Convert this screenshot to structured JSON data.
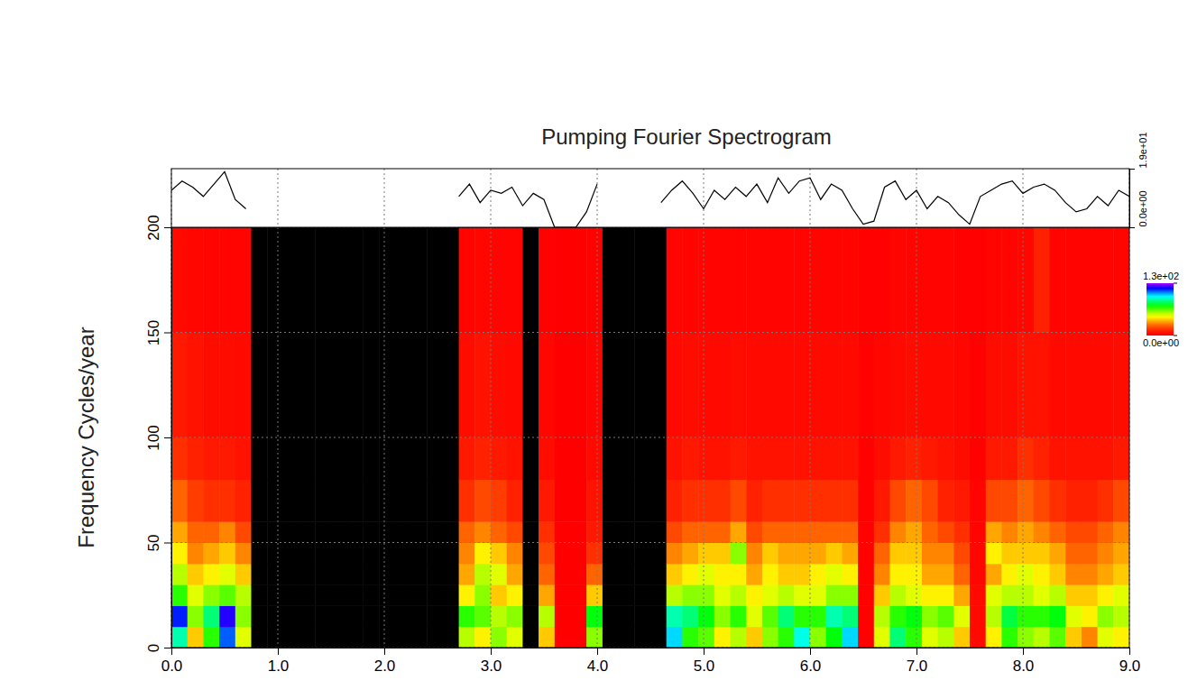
{
  "chart_data": [
    {
      "type": "line",
      "title": "Pumping Fourier Spectrogram",
      "color": "#000000",
      "x": [
        0,
        0.1,
        0.2,
        0.3,
        0.4,
        0.5,
        0.6,
        0.7,
        0.8,
        0.9,
        1,
        1.1,
        1.2,
        1.3,
        1.4,
        1.5,
        1.6,
        1.7,
        1.8,
        1.9,
        2,
        2.1,
        2.2,
        2.3,
        2.4,
        2.5,
        2.6,
        2.7,
        2.8,
        2.9,
        3,
        3.1,
        3.2,
        3.3,
        3.4,
        3.5,
        3.6,
        3.7,
        3.8,
        3.9,
        4,
        4.1,
        4.2,
        4.3,
        4.4,
        4.5,
        4.6,
        4.7,
        4.8,
        4.9,
        5,
        5.1,
        5.2,
        5.3,
        5.4,
        5.5,
        5.6,
        5.7,
        5.8,
        5.9,
        6,
        6.1,
        6.2,
        6.3,
        6.4,
        6.5,
        6.6,
        6.7,
        6.8,
        6.9,
        7,
        7.1,
        7.2,
        7.3,
        7.4,
        7.5,
        7.6,
        7.7,
        7.8,
        7.9,
        8,
        8.1,
        8.2,
        8.3,
        8.4,
        8.5,
        8.6,
        8.7,
        8.8,
        8.9,
        9
      ],
      "values": [
        12,
        15,
        13,
        10,
        14,
        18,
        9,
        6,
        null,
        null,
        null,
        null,
        null,
        null,
        null,
        null,
        null,
        null,
        null,
        null,
        null,
        null,
        null,
        null,
        null,
        null,
        null,
        10,
        14,
        8,
        12,
        11,
        13,
        7,
        11,
        9,
        0,
        0,
        0,
        5,
        14,
        null,
        null,
        null,
        null,
        null,
        8,
        12,
        15,
        11,
        6,
        12,
        9,
        13,
        10,
        14,
        8,
        16,
        11,
        15,
        16,
        9,
        14,
        12,
        6,
        1,
        2,
        13,
        15,
        9,
        12,
        6,
        10,
        8,
        4,
        1,
        10,
        12,
        14,
        15,
        11,
        13,
        14,
        12,
        8,
        5,
        6,
        10,
        7,
        12,
        10
      ],
      "xlim": [
        0,
        9
      ],
      "ylim": [
        0,
        19
      ],
      "xticks": [
        0,
        1,
        2,
        3,
        4,
        5,
        6,
        7,
        8,
        9
      ],
      "yticks": [
        {
          "value": 0,
          "label": "0.0e+00"
        },
        {
          "value": 19,
          "label": "1.9e+01"
        }
      ],
      "grid": true,
      "tick_labels": "y"
    },
    {
      "type": "heatmap",
      "ylabel": "Frequency Cycles/year",
      "x_edges": [
        0,
        0.15,
        0.3,
        0.45,
        0.6,
        0.75,
        0.9,
        1.05,
        1.2,
        1.35,
        1.5,
        1.65,
        1.8,
        1.95,
        2.1,
        2.25,
        2.4,
        2.55,
        2.7,
        2.85,
        3,
        3.15,
        3.3,
        3.45,
        3.6,
        3.75,
        3.9,
        4.05,
        4.2,
        4.35,
        4.5,
        4.65,
        4.8,
        4.95,
        5.1,
        5.25,
        5.4,
        5.55,
        5.7,
        5.85,
        6,
        6.15,
        6.3,
        6.45,
        6.6,
        6.75,
        6.9,
        7.05,
        7.2,
        7.35,
        7.5,
        7.65,
        7.8,
        7.95,
        8.1,
        8.25,
        8.4,
        8.55,
        8.7,
        8.85,
        9
      ],
      "y_edges": [
        0,
        10,
        20,
        30,
        40,
        50,
        60,
        80,
        100,
        150,
        200
      ],
      "cells": [
        [
          90,
          115,
          70,
          55,
          45,
          35,
          25,
          15,
          10,
          5
        ],
        [
          40,
          60,
          50,
          40,
          30,
          25,
          18,
          12,
          8,
          4
        ],
        [
          70,
          85,
          60,
          45,
          35,
          25,
          15,
          10,
          6,
          3
        ],
        [
          110,
          120,
          65,
          50,
          40,
          30,
          15,
          10,
          6,
          3
        ],
        [
          50,
          60,
          55,
          40,
          30,
          20,
          12,
          8,
          5,
          3
        ],
        [
          null,
          null,
          null,
          null,
          null,
          null,
          null,
          null,
          null,
          null
        ],
        [
          null,
          null,
          null,
          null,
          null,
          null,
          null,
          null,
          null,
          null
        ],
        [
          null,
          null,
          null,
          null,
          null,
          null,
          null,
          null,
          null,
          null
        ],
        [
          null,
          null,
          null,
          null,
          null,
          null,
          null,
          null,
          null,
          null
        ],
        [
          null,
          null,
          null,
          null,
          null,
          null,
          null,
          null,
          null,
          null
        ],
        [
          null,
          null,
          null,
          null,
          null,
          null,
          null,
          null,
          null,
          null
        ],
        [
          null,
          null,
          null,
          null,
          null,
          null,
          null,
          null,
          null,
          null
        ],
        [
          null,
          null,
          null,
          null,
          null,
          null,
          null,
          null,
          null,
          null
        ],
        [
          null,
          null,
          null,
          null,
          null,
          null,
          null,
          null,
          null,
          null
        ],
        [
          null,
          null,
          null,
          null,
          null,
          null,
          null,
          null,
          null,
          null
        ],
        [
          null,
          null,
          null,
          null,
          null,
          null,
          null,
          null,
          null,
          null
        ],
        [
          null,
          null,
          null,
          null,
          null,
          null,
          null,
          null,
          null,
          null
        ],
        [
          null,
          null,
          null,
          null,
          null,
          null,
          null,
          null,
          null,
          null
        ],
        [
          55,
          70,
          45,
          35,
          30,
          25,
          15,
          10,
          6,
          3
        ],
        [
          45,
          65,
          60,
          55,
          45,
          30,
          20,
          12,
          8,
          4
        ],
        [
          60,
          55,
          40,
          50,
          40,
          25,
          18,
          10,
          6,
          3
        ],
        [
          50,
          60,
          45,
          35,
          30,
          20,
          12,
          8,
          5,
          3
        ],
        [
          null,
          null,
          null,
          null,
          null,
          null,
          null,
          null,
          null,
          null
        ],
        [
          40,
          55,
          35,
          25,
          20,
          15,
          10,
          6,
          4,
          2
        ],
        [
          0,
          0,
          0,
          0,
          0,
          0,
          0,
          0,
          0,
          0
        ],
        [
          0,
          0,
          0,
          0,
          0,
          0,
          0,
          0,
          0,
          0
        ],
        [
          60,
          75,
          40,
          25,
          15,
          10,
          8,
          5,
          3,
          2
        ],
        [
          null,
          null,
          null,
          null,
          null,
          null,
          null,
          null,
          null,
          null
        ],
        [
          null,
          null,
          null,
          null,
          null,
          null,
          null,
          null,
          null,
          null
        ],
        [
          null,
          null,
          null,
          null,
          null,
          null,
          null,
          null,
          null,
          null
        ],
        [
          null,
          null,
          null,
          null,
          null,
          null,
          null,
          null,
          null,
          null
        ],
        [
          100,
          90,
          55,
          40,
          30,
          20,
          12,
          8,
          5,
          3
        ],
        [
          70,
          85,
          60,
          45,
          35,
          25,
          15,
          10,
          6,
          3
        ],
        [
          65,
          75,
          60,
          50,
          40,
          25,
          15,
          8,
          5,
          3
        ],
        [
          45,
          60,
          50,
          45,
          40,
          25,
          15,
          8,
          5,
          3
        ],
        [
          55,
          70,
          55,
          45,
          60,
          35,
          20,
          10,
          6,
          3
        ],
        [
          40,
          50,
          45,
          35,
          30,
          20,
          12,
          8,
          5,
          3
        ],
        [
          60,
          65,
          50,
          45,
          40,
          25,
          15,
          8,
          5,
          3
        ],
        [
          70,
          85,
          55,
          40,
          35,
          25,
          15,
          8,
          5,
          3
        ],
        [
          95,
          70,
          50,
          40,
          35,
          25,
          15,
          8,
          5,
          3
        ],
        [
          60,
          70,
          50,
          45,
          35,
          25,
          15,
          8,
          5,
          3
        ],
        [
          75,
          90,
          60,
          50,
          40,
          25,
          15,
          8,
          5,
          3
        ],
        [
          100,
          85,
          60,
          45,
          35,
          25,
          15,
          8,
          5,
          3
        ],
        [
          2,
          2,
          2,
          2,
          2,
          2,
          2,
          2,
          2,
          2
        ],
        [
          50,
          55,
          40,
          30,
          25,
          15,
          10,
          6,
          4,
          2
        ],
        [
          85,
          70,
          55,
          45,
          40,
          30,
          20,
          10,
          5,
          3
        ],
        [
          70,
          75,
          50,
          45,
          40,
          35,
          25,
          12,
          6,
          3
        ],
        [
          50,
          60,
          45,
          35,
          30,
          25,
          20,
          10,
          5,
          3
        ],
        [
          55,
          65,
          45,
          35,
          30,
          20,
          12,
          8,
          5,
          3
        ],
        [
          40,
          50,
          35,
          25,
          20,
          15,
          10,
          6,
          4,
          2
        ],
        [
          5,
          5,
          5,
          4,
          4,
          3,
          3,
          2,
          2,
          2
        ],
        [
          45,
          55,
          50,
          35,
          45,
          35,
          20,
          10,
          6,
          3
        ],
        [
          70,
          80,
          55,
          45,
          40,
          30,
          20,
          10,
          6,
          3
        ],
        [
          60,
          70,
          55,
          50,
          40,
          35,
          25,
          15,
          8,
          4
        ],
        [
          55,
          70,
          50,
          45,
          40,
          30,
          20,
          12,
          8,
          12
        ],
        [
          65,
          75,
          55,
          40,
          35,
          25,
          15,
          8,
          5,
          3
        ],
        [
          40,
          50,
          40,
          30,
          25,
          20,
          12,
          8,
          5,
          3
        ],
        [
          30,
          45,
          40,
          30,
          25,
          20,
          12,
          8,
          5,
          3
        ],
        [
          50,
          60,
          45,
          35,
          30,
          25,
          15,
          8,
          5,
          3
        ],
        [
          45,
          55,
          50,
          40,
          35,
          30,
          20,
          10,
          6,
          3
        ]
      ],
      "xlim": [
        0,
        9
      ],
      "ylim": [
        0,
        200
      ],
      "xticks": [
        {
          "value": 0,
          "label": "0.0"
        },
        {
          "value": 1,
          "label": "1.0"
        },
        {
          "value": 2,
          "label": "2.0"
        },
        {
          "value": 3,
          "label": "3.0"
        },
        {
          "value": 4,
          "label": "4.0"
        },
        {
          "value": 5,
          "label": "5.0"
        },
        {
          "value": 6,
          "label": "6.0"
        },
        {
          "value": 7,
          "label": "7.0"
        },
        {
          "value": 8,
          "label": "8.0"
        },
        {
          "value": 9,
          "label": "9.0"
        }
      ],
      "yticks": [
        0,
        50,
        100,
        150,
        200
      ],
      "grid": true,
      "colorbar": {
        "range": [
          0,
          130
        ],
        "ticks": [
          {
            "value": 0,
            "label": "0.0e+00"
          },
          {
            "value": 130,
            "label": "1.3e+02"
          }
        ]
      }
    }
  ]
}
